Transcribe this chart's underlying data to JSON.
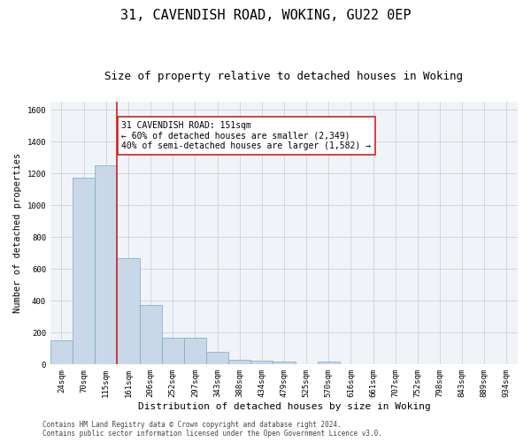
{
  "title1": "31, CAVENDISH ROAD, WOKING, GU22 0EP",
  "title2": "Size of property relative to detached houses in Woking",
  "xlabel": "Distribution of detached houses by size in Woking",
  "ylabel": "Number of detached properties",
  "categories": [
    "24sqm",
    "70sqm",
    "115sqm",
    "161sqm",
    "206sqm",
    "252sqm",
    "297sqm",
    "343sqm",
    "388sqm",
    "434sqm",
    "479sqm",
    "525sqm",
    "570sqm",
    "616sqm",
    "661sqm",
    "707sqm",
    "752sqm",
    "798sqm",
    "843sqm",
    "889sqm",
    "934sqm"
  ],
  "values": [
    150,
    1175,
    1250,
    670,
    375,
    170,
    170,
    80,
    30,
    25,
    20,
    0,
    20,
    0,
    0,
    0,
    0,
    0,
    0,
    0,
    0
  ],
  "bar_color": "#c8d8e8",
  "bar_edge_color": "#7aaabb",
  "vline_color": "#cc2222",
  "annotation_text": "31 CAVENDISH ROAD: 151sqm\n← 60% of detached houses are smaller (2,349)\n40% of semi-detached houses are larger (1,582) →",
  "annotation_box_color": "#cc2222",
  "ylim": [
    0,
    1650
  ],
  "yticks": [
    0,
    200,
    400,
    600,
    800,
    1000,
    1200,
    1400,
    1600
  ],
  "grid_color": "#cccccc",
  "background_color": "#f0f4f8",
  "footer1": "Contains HM Land Registry data © Crown copyright and database right 2024.",
  "footer2": "Contains public sector information licensed under the Open Government Licence v3.0.",
  "title1_fontsize": 11,
  "title2_fontsize": 9,
  "xlabel_fontsize": 8,
  "ylabel_fontsize": 7.5,
  "tick_fontsize": 6.5,
  "annotation_fontsize": 7,
  "footer_fontsize": 5.5
}
